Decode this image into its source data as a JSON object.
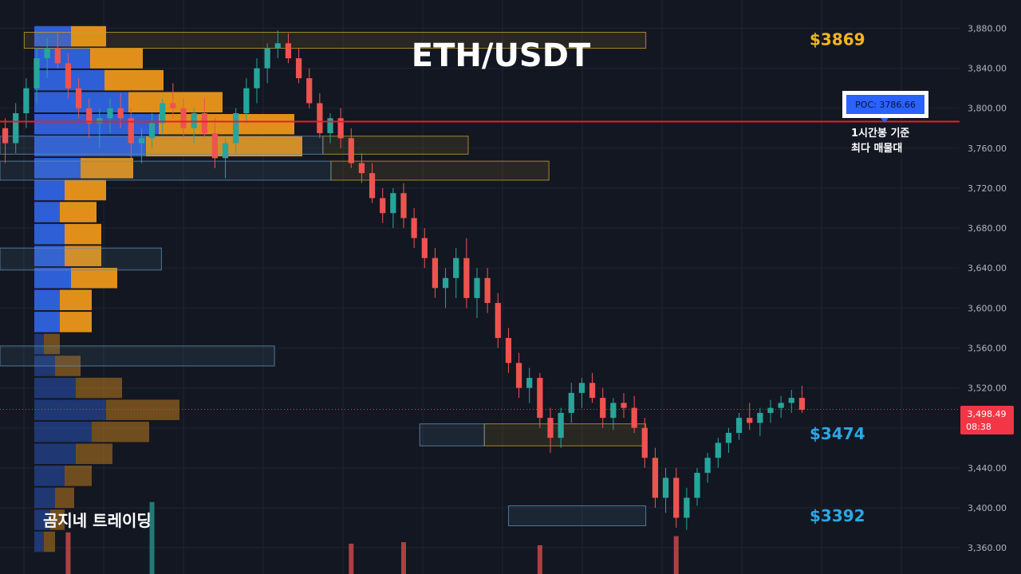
{
  "chart_data": {
    "type": "candlestick",
    "title": "ETH/USDT",
    "watermark": "곰지네 트레이딩",
    "y_axis": {
      "position": "right",
      "ticks": [
        3880,
        3840,
        3800,
        3760,
        3720,
        3680,
        3640,
        3600,
        3560,
        3520,
        3480,
        3440,
        3400,
        3360
      ],
      "tick_labels": [
        "3,880.00",
        "3,840.00",
        "3,800.00",
        "3,760.00",
        "3,720.00",
        "3,680.00",
        "3,640.00",
        "3,600.00",
        "3,560.00",
        "3,520.00",
        "3,480.00",
        "3,440.00",
        "3,400.00",
        "3,360.00"
      ],
      "range": [
        3340,
        3905
      ]
    },
    "grid": true,
    "current_price": {
      "value": 3498.49,
      "label": "3,498.49",
      "countdown": "08:38",
      "color": "#f23645"
    },
    "poc": {
      "value": 3786.66,
      "label": "POC: 3786.66",
      "note_line1": "1시간봉 기준",
      "note_line2": "최다 매물대",
      "line_color": "#e0202a",
      "badge_color": "#2962ff"
    },
    "level_labels": [
      {
        "text": "$3869",
        "price": 3869,
        "color": "#f5b51d"
      },
      {
        "text": "$3474",
        "price": 3474,
        "color": "#2aa8e6"
      },
      {
        "text": "$3392",
        "price": 3392,
        "color": "#2aa8e6"
      }
    ],
    "zones": [
      {
        "kind": "supply",
        "top": 3876,
        "bottom": 3860,
        "x_from": 3,
        "x_to": 80
      },
      {
        "kind": "supply",
        "top": 3772,
        "bottom": 3754,
        "x_from": 40,
        "x_to": 58
      },
      {
        "kind": "supply",
        "top": 3747,
        "bottom": 3728,
        "x_from": 41,
        "x_to": 68
      },
      {
        "kind": "supply",
        "top": 3484,
        "bottom": 3462,
        "x_from": 60,
        "x_to": 80
      },
      {
        "kind": "demand",
        "top": 3772,
        "bottom": 3754,
        "x_from": 0,
        "x_to": 40
      },
      {
        "kind": "demand",
        "top": 3747,
        "bottom": 3728,
        "x_from": 0,
        "x_to": 41
      },
      {
        "kind": "demand",
        "top": 3660,
        "bottom": 3638,
        "x_from": 0,
        "x_to": 20
      },
      {
        "kind": "demand",
        "top": 3562,
        "bottom": 3542,
        "x_from": 0,
        "x_to": 34
      },
      {
        "kind": "demand",
        "top": 3484,
        "bottom": 3462,
        "x_from": 52,
        "x_to": 60
      },
      {
        "kind": "demand",
        "top": 3402,
        "bottom": 3382,
        "x_from": 63,
        "x_to": 80
      }
    ],
    "volume_profile": [
      {
        "price": 3872,
        "buy": 46,
        "sell": 44
      },
      {
        "price": 3850,
        "buy": 70,
        "sell": 66
      },
      {
        "price": 3828,
        "buy": 88,
        "sell": 74
      },
      {
        "price": 3806,
        "buy": 118,
        "sell": 118
      },
      {
        "price": 3784,
        "buy": 156,
        "sell": 170
      },
      {
        "price": 3762,
        "buy": 140,
        "sell": 196
      },
      {
        "price": 3740,
        "buy": 58,
        "sell": 66
      },
      {
        "price": 3718,
        "buy": 38,
        "sell": 52
      },
      {
        "price": 3696,
        "buy": 32,
        "sell": 46
      },
      {
        "price": 3674,
        "buy": 38,
        "sell": 46
      },
      {
        "price": 3652,
        "buy": 38,
        "sell": 46
      },
      {
        "price": 3630,
        "buy": 46,
        "sell": 58
      },
      {
        "price": 3608,
        "buy": 32,
        "sell": 40
      },
      {
        "price": 3586,
        "buy": 32,
        "sell": 40
      },
      {
        "price": 3564,
        "buy": 12,
        "sell": 20
      },
      {
        "price": 3542,
        "buy": 26,
        "sell": 32
      },
      {
        "price": 3520,
        "buy": 52,
        "sell": 58
      },
      {
        "price": 3498,
        "buy": 90,
        "sell": 92
      },
      {
        "price": 3476,
        "buy": 72,
        "sell": 72
      },
      {
        "price": 3454,
        "buy": 52,
        "sell": 46
      },
      {
        "price": 3432,
        "buy": 38,
        "sell": 34
      },
      {
        "price": 3410,
        "buy": 26,
        "sell": 24
      },
      {
        "price": 3388,
        "buy": 20,
        "sell": 18
      },
      {
        "price": 3366,
        "buy": 12,
        "sell": 14
      }
    ],
    "candles": [
      [
        3780,
        3790,
        3745,
        3765
      ],
      [
        3765,
        3805,
        3755,
        3795
      ],
      [
        3795,
        3830,
        3780,
        3820
      ],
      [
        3820,
        3860,
        3805,
        3850
      ],
      [
        3850,
        3870,
        3830,
        3860
      ],
      [
        3860,
        3875,
        3840,
        3845
      ],
      [
        3845,
        3855,
        3810,
        3820
      ],
      [
        3820,
        3830,
        3790,
        3800
      ],
      [
        3800,
        3810,
        3770,
        3785
      ],
      [
        3785,
        3800,
        3760,
        3790
      ],
      [
        3790,
        3810,
        3775,
        3800
      ],
      [
        3800,
        3815,
        3780,
        3790
      ],
      [
        3790,
        3800,
        3750,
        3765
      ],
      [
        3765,
        3780,
        3745,
        3770
      ],
      [
        3770,
        3795,
        3760,
        3785
      ],
      [
        3785,
        3810,
        3775,
        3805
      ],
      [
        3805,
        3825,
        3790,
        3800
      ],
      [
        3800,
        3810,
        3770,
        3780
      ],
      [
        3780,
        3800,
        3765,
        3795
      ],
      [
        3795,
        3810,
        3770,
        3775
      ],
      [
        3775,
        3790,
        3740,
        3750
      ],
      [
        3750,
        3770,
        3730,
        3765
      ],
      [
        3765,
        3800,
        3755,
        3795
      ],
      [
        3795,
        3830,
        3785,
        3820
      ],
      [
        3820,
        3850,
        3805,
        3840
      ],
      [
        3840,
        3865,
        3825,
        3860
      ],
      [
        3860,
        3878,
        3850,
        3865
      ],
      [
        3865,
        3875,
        3845,
        3850
      ],
      [
        3850,
        3860,
        3825,
        3830
      ],
      [
        3830,
        3840,
        3800,
        3805
      ],
      [
        3805,
        3815,
        3770,
        3775
      ],
      [
        3775,
        3795,
        3765,
        3790
      ],
      [
        3790,
        3800,
        3760,
        3770
      ],
      [
        3770,
        3780,
        3740,
        3745
      ],
      [
        3745,
        3755,
        3725,
        3735
      ],
      [
        3735,
        3745,
        3705,
        3710
      ],
      [
        3710,
        3720,
        3685,
        3695
      ],
      [
        3695,
        3720,
        3680,
        3715
      ],
      [
        3715,
        3725,
        3680,
        3690
      ],
      [
        3690,
        3700,
        3660,
        3670
      ],
      [
        3670,
        3680,
        3640,
        3650
      ],
      [
        3650,
        3660,
        3610,
        3620
      ],
      [
        3620,
        3640,
        3600,
        3630
      ],
      [
        3630,
        3660,
        3610,
        3650
      ],
      [
        3650,
        3670,
        3600,
        3610
      ],
      [
        3610,
        3640,
        3590,
        3630
      ],
      [
        3630,
        3640,
        3595,
        3605
      ],
      [
        3605,
        3615,
        3560,
        3570
      ],
      [
        3570,
        3580,
        3535,
        3545
      ],
      [
        3545,
        3555,
        3510,
        3520
      ],
      [
        3520,
        3540,
        3505,
        3530
      ],
      [
        3530,
        3535,
        3480,
        3490
      ],
      [
        3490,
        3500,
        3455,
        3470
      ],
      [
        3470,
        3500,
        3460,
        3495
      ],
      [
        3495,
        3525,
        3485,
        3515
      ],
      [
        3515,
        3530,
        3500,
        3525
      ],
      [
        3525,
        3535,
        3505,
        3510
      ],
      [
        3510,
        3520,
        3480,
        3490
      ],
      [
        3490,
        3510,
        3478,
        3505
      ],
      [
        3505,
        3515,
        3490,
        3500
      ],
      [
        3500,
        3512,
        3475,
        3480
      ],
      [
        3480,
        3490,
        3440,
        3450
      ],
      [
        3450,
        3460,
        3400,
        3410
      ],
      [
        3410,
        3440,
        3395,
        3430
      ],
      [
        3430,
        3440,
        3380,
        3390
      ],
      [
        3390,
        3420,
        3378,
        3410
      ],
      [
        3410,
        3440,
        3402,
        3435
      ],
      [
        3435,
        3455,
        3425,
        3450
      ],
      [
        3450,
        3470,
        3440,
        3465
      ],
      [
        3465,
        3480,
        3455,
        3475
      ],
      [
        3475,
        3495,
        3468,
        3490
      ],
      [
        3490,
        3505,
        3478,
        3485
      ],
      [
        3485,
        3500,
        3472,
        3495
      ],
      [
        3495,
        3508,
        3485,
        3500
      ],
      [
        3500,
        3512,
        3490,
        3505
      ],
      [
        3505,
        3518,
        3495,
        3510
      ],
      [
        3510,
        3522,
        3495,
        3498
      ]
    ],
    "volume_spikes": [
      {
        "index": 6,
        "rel": 0.55,
        "dir": "down"
      },
      {
        "index": 14,
        "rel": 0.95,
        "dir": "up"
      },
      {
        "index": 33,
        "rel": 0.4,
        "dir": "down"
      },
      {
        "index": 38,
        "rel": 0.42,
        "dir": "down"
      },
      {
        "index": 51,
        "rel": 0.38,
        "dir": "down"
      },
      {
        "index": 64,
        "rel": 0.5,
        "dir": "down"
      }
    ],
    "colors": {
      "background": "#131722",
      "grid": "#1f2433",
      "up": "#26a69a",
      "down": "#ef5350",
      "profile_buy": "#2f5fd6",
      "profile_sell": "#e0901a",
      "supply_zone": "#c8a02a",
      "demand_zone": "#5f8fb0",
      "axis_text": "#b2b5be"
    }
  }
}
